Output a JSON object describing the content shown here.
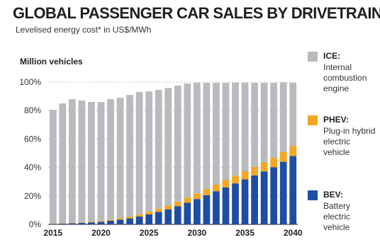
{
  "header": {
    "title": "GLOBAL PASSENGER CAR SALES BY DRIVETRAIN",
    "subtitle": "Levelised energy cost* in US$/MWh",
    "unit_label": "Million vehicles"
  },
  "legend": [
    {
      "name": "ICE:",
      "desc": "Internal combustion engine",
      "color": "#b8babd"
    },
    {
      "name": "PHEV:",
      "desc": "Plug-in hybrid electric vehicle",
      "color": "#f5a623"
    },
    {
      "name": "BEV:",
      "desc": "Battery electric vehicle",
      "color": "#1f4ea1"
    }
  ],
  "chart_data": {
    "type": "bar",
    "stacked": true,
    "x": [
      2015,
      2016,
      2017,
      2018,
      2019,
      2020,
      2021,
      2022,
      2023,
      2024,
      2025,
      2026,
      2027,
      2028,
      2029,
      2030,
      2031,
      2032,
      2033,
      2034,
      2035,
      2036,
      2037,
      2038,
      2039,
      2040
    ],
    "xticks": [
      "2015",
      "2020",
      "2025",
      "2030",
      "2035",
      "2040"
    ],
    "yticks": [
      "0%",
      "20%",
      "40%",
      "60%",
      "80%",
      "100%"
    ],
    "ylim": [
      0,
      100
    ],
    "series": [
      {
        "name": "BEV",
        "color": "#1f4ea1",
        "values": [
          0.3,
          0.5,
          0.8,
          1,
          1.4,
          1.8,
          2.5,
          3.3,
          4.2,
          5.5,
          7,
          8.7,
          10.6,
          12.8,
          15.2,
          17.8,
          20.5,
          23.3,
          26,
          28.8,
          31.6,
          34.4,
          37.2,
          40.2,
          44,
          48
        ]
      },
      {
        "name": "PHEV",
        "color": "#f5a623",
        "values": [
          0.2,
          0.2,
          0.3,
          0.4,
          0.5,
          0.6,
          0.8,
          1,
          1.3,
          1.6,
          2,
          2.4,
          2.8,
          3.2,
          3.6,
          4,
          4.4,
          4.8,
          5.1,
          5.4,
          5.7,
          6,
          6.3,
          6.6,
          6.9,
          7.2
        ]
      },
      {
        "name": "ICE",
        "color": "#b8babd",
        "values": [
          80,
          84.3,
          86.9,
          85.6,
          84.1,
          83.6,
          84.7,
          84.7,
          85.5,
          85.9,
          84.5,
          83.4,
          82.4,
          81.5,
          80.2,
          77.7,
          74.6,
          71.4,
          68.4,
          65.4,
          62.2,
          59.1,
          56,
          52.7,
          48.8,
          44.3
        ]
      }
    ]
  }
}
